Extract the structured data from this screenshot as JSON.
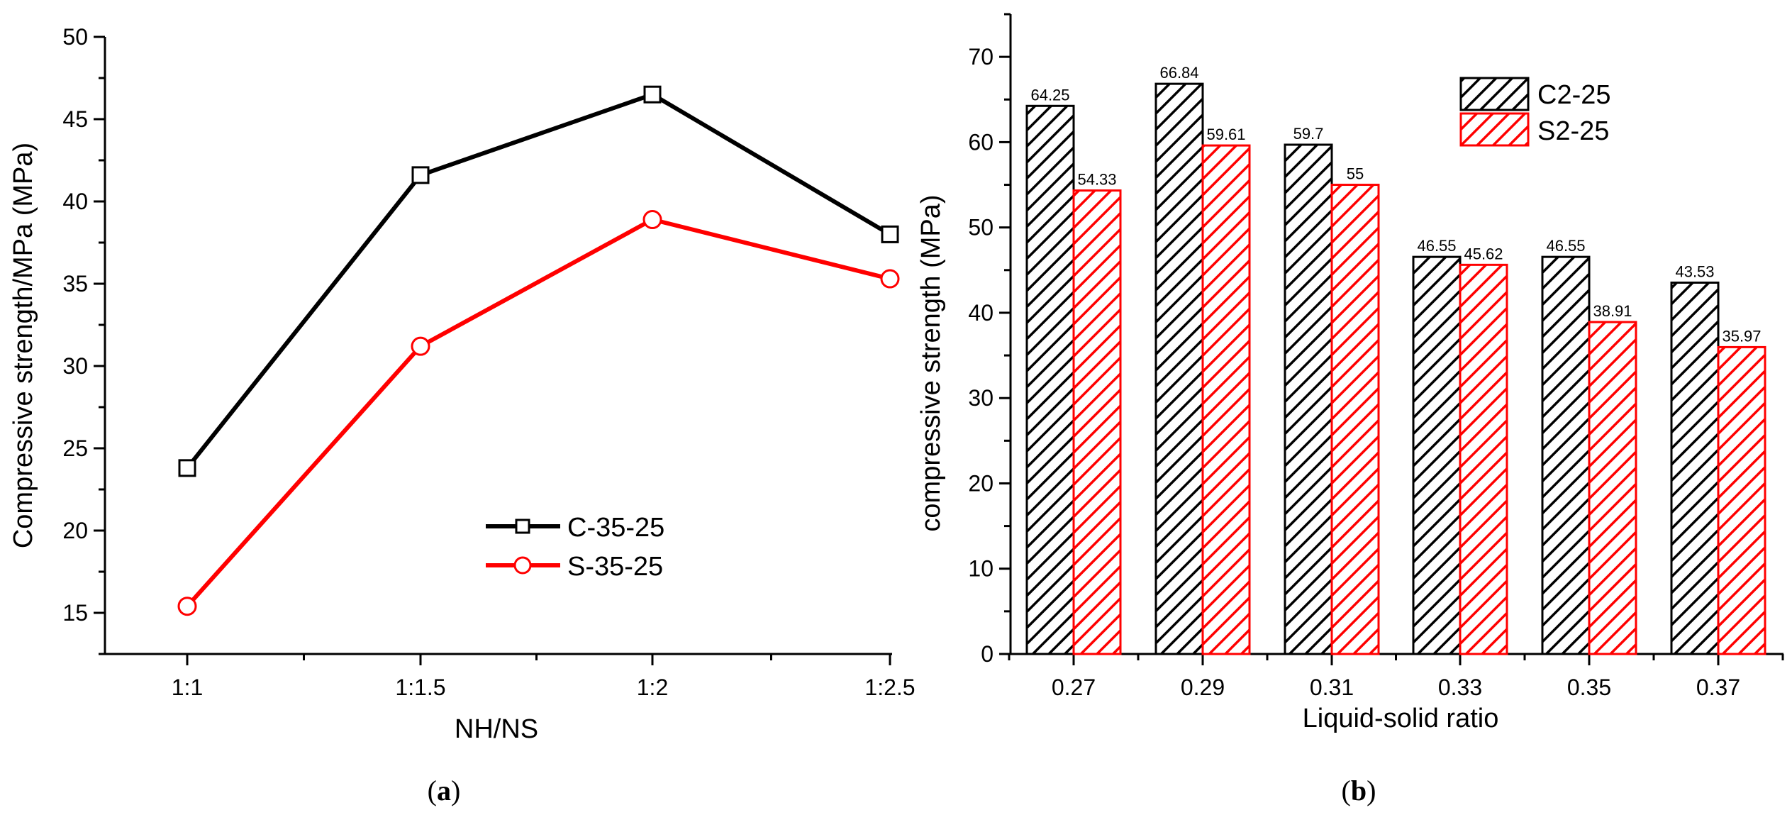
{
  "chart_data": [
    {
      "id": "a",
      "type": "line",
      "panel_label": "a",
      "title": "",
      "xlabel": "NH/NS",
      "ylabel": "Compressive strength/MPa (MPa)",
      "categories": [
        "1:1",
        "1:1.5",
        "1:2",
        "1:2.5"
      ],
      "ylim": [
        12.5,
        50
      ],
      "yticks": [
        15,
        20,
        25,
        30,
        35,
        40,
        45,
        50
      ],
      "legend_position": "lower-right",
      "series": [
        {
          "name": "C-35-25",
          "marker": "square",
          "color": "#000000",
          "values": [
            23.8,
            41.6,
            46.5,
            38.0
          ]
        },
        {
          "name": "S-35-25",
          "marker": "circle",
          "color": "#ff0000",
          "values": [
            15.4,
            31.2,
            38.9,
            35.3
          ]
        }
      ]
    },
    {
      "id": "b",
      "type": "bar",
      "panel_label": "b",
      "title": "",
      "xlabel": "Liquid-solid ratio",
      "ylabel": "compressive strength (MPa)",
      "categories": [
        "0.27",
        "0.29",
        "0.31",
        "0.33",
        "0.35",
        "0.37"
      ],
      "ylim": [
        0,
        75
      ],
      "yticks": [
        0,
        10,
        20,
        30,
        40,
        50,
        60,
        70
      ],
      "legend_position": "top-right",
      "series": [
        {
          "name": "C2-25",
          "color": "#000000",
          "hatch": "black",
          "values": [
            64.25,
            66.84,
            59.7,
            46.55,
            46.55,
            43.53
          ],
          "labels": [
            "64.25",
            "66.84",
            "59.7",
            "46.55",
            "46.55",
            "43.53"
          ]
        },
        {
          "name": "S2-25",
          "color": "#ff0000",
          "hatch": "red",
          "values": [
            54.33,
            59.61,
            55,
            45.62,
            38.91,
            35.97
          ],
          "labels": [
            "54.33",
            "59.61",
            "55",
            "45.62",
            "38.91",
            "35.97"
          ]
        }
      ]
    }
  ]
}
